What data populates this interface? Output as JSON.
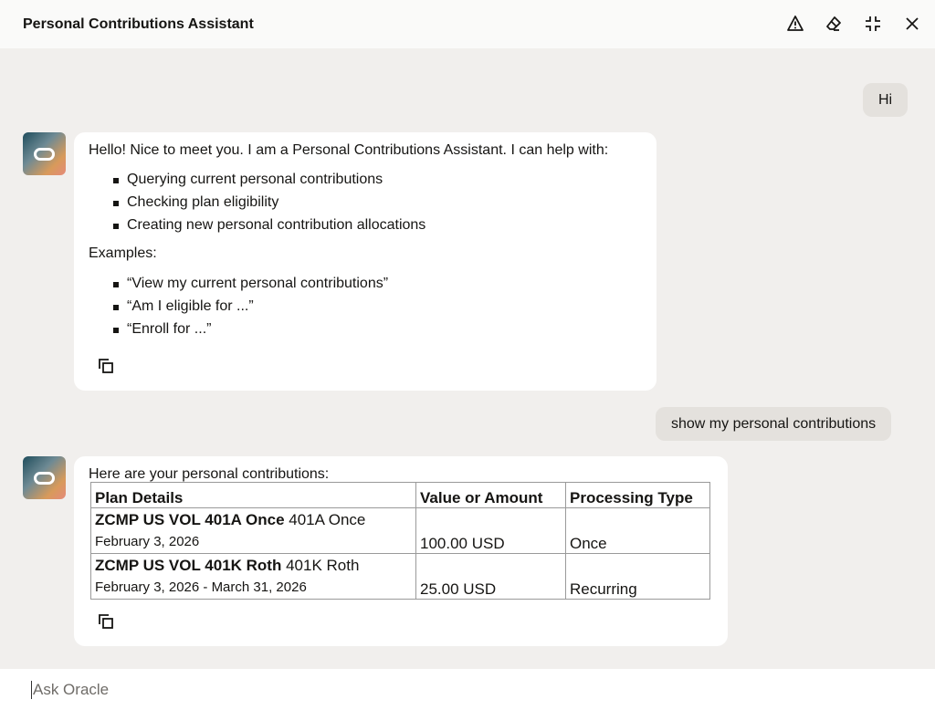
{
  "header": {
    "title": "Personal Contributions Assistant",
    "icons": [
      "warning-icon",
      "eraser-icon",
      "minimize-icon",
      "close-icon"
    ]
  },
  "messages": {
    "user1": "Hi",
    "bot1": {
      "intro": "Hello! Nice to meet you. I am a Personal Contributions Assistant. I can help with:",
      "capabilities": [
        "Querying current personal contributions",
        "Checking plan eligibility",
        "Creating new personal contribution allocations"
      ],
      "examples_label": "Examples:",
      "examples": [
        "“View my current personal contributions”",
        "“Am I eligible for ...”",
        "“Enroll for ...”"
      ]
    },
    "user2": "show my personal contributions",
    "bot2": {
      "intro": "Here are your personal contributions:",
      "columns": [
        "Plan Details",
        "Value or Amount",
        "Processing Type"
      ],
      "rows": [
        {
          "plan": "ZCMP US VOL 401A Once",
          "plan_suffix": "401A Once",
          "date": "February 3, 2026",
          "amount": "100.00 USD",
          "type": "Once"
        },
        {
          "plan": "ZCMP US VOL 401K Roth",
          "plan_suffix": "401K Roth",
          "date": "February 3, 2026 - March 31, 2026",
          "amount": "25.00 USD",
          "type": "Recurring"
        }
      ]
    }
  },
  "input": {
    "placeholder": "Ask Oracle",
    "value": ""
  }
}
